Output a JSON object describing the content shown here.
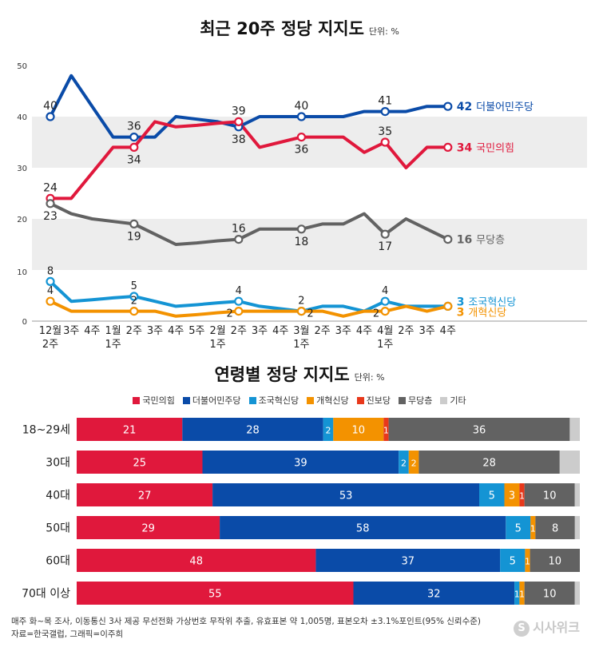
{
  "top_chart": {
    "title": "최근 20주 정당 지지도",
    "unit": "단위: %"
  },
  "bottom_chart": {
    "title": "연령별 정당 지지도",
    "unit": "단위: %"
  },
  "footer": {
    "note": "매주 화~목 조사, 이동통신 3사 제공 무선전화 가상번호 무작위 추출, 유효표본 약 1,005명, 표본오차 ±3.1%포인트(95% 신뢰수준)",
    "source": "자료=한국갤럽, 그래픽=이주희"
  },
  "logo": {
    "mark": "S",
    "text": "시사위크"
  },
  "chart_data": [
    {
      "type": "line",
      "title": "최근 20주 정당 지지도",
      "unit": "단위: %",
      "x_labels": [
        [
          "12월",
          "2주"
        ],
        [
          "3주"
        ],
        [
          "4주"
        ],
        [
          "1월",
          "1주"
        ],
        [
          "2주"
        ],
        [
          "3주"
        ],
        [
          "4주"
        ],
        [
          "5주"
        ],
        [
          "2월",
          "1주"
        ],
        [
          "2주"
        ],
        [
          "3주"
        ],
        [
          "4주"
        ],
        [
          "3월",
          "1주"
        ],
        [
          "2주"
        ],
        [
          "3주"
        ],
        [
          "4주"
        ],
        [
          "4월",
          "1주"
        ],
        [
          "2주"
        ],
        [
          "3주"
        ],
        [
          "4주"
        ]
      ],
      "upper_panel": {
        "ylim": [
          10,
          50
        ],
        "yticks": [
          20,
          30,
          40,
          50
        ]
      },
      "lower_panel": {
        "ylim": [
          0,
          10
        ],
        "yticks": [
          0,
          10
        ]
      },
      "series": [
        {
          "name": "더불어민주당",
          "color": "#0a4ba8",
          "panel": "upper",
          "values": [
            40,
            48,
            42,
            36,
            36,
            36,
            40,
            39.5,
            39,
            38,
            40,
            40,
            40,
            40,
            40,
            41,
            41,
            41,
            42,
            42
          ],
          "labels": [
            {
              "i": 0,
              "text": "40",
              "pos": "above"
            },
            {
              "i": 4,
              "text": "36",
              "pos": "above"
            },
            {
              "i": 9,
              "text": "38",
              "pos": "below"
            },
            {
              "i": 12,
              "text": "40",
              "pos": "above"
            },
            {
              "i": 16,
              "text": "41",
              "pos": "above"
            }
          ],
          "end_value": "42"
        },
        {
          "name": "국민의힘",
          "color": "#e0183c",
          "panel": "upper",
          "values": [
            24,
            24,
            29,
            34,
            34,
            39,
            38,
            38.3,
            38.7,
            39,
            34,
            35,
            36,
            36,
            36,
            33,
            35,
            30,
            34,
            34
          ],
          "labels": [
            {
              "i": 0,
              "text": "24",
              "pos": "above"
            },
            {
              "i": 4,
              "text": "34",
              "pos": "below"
            },
            {
              "i": 9,
              "text": "39",
              "pos": "above"
            },
            {
              "i": 12,
              "text": "36",
              "pos": "below"
            },
            {
              "i": 16,
              "text": "35",
              "pos": "above"
            }
          ],
          "end_value": "34"
        },
        {
          "name": "무당층",
          "color": "#626262",
          "panel": "upper",
          "values": [
            23,
            21,
            20,
            19.5,
            19,
            17,
            15,
            15.3,
            15.7,
            16,
            18,
            18,
            18,
            19,
            19,
            21,
            17,
            20,
            18,
            16
          ],
          "labels": [
            {
              "i": 0,
              "text": "23",
              "pos": "below"
            },
            {
              "i": 4,
              "text": "19",
              "pos": "below"
            },
            {
              "i": 9,
              "text": "16",
              "pos": "above"
            },
            {
              "i": 12,
              "text": "18",
              "pos": "below"
            },
            {
              "i": 16,
              "text": "17",
              "pos": "below"
            }
          ],
          "end_value": "16"
        },
        {
          "name": "조국혁신당",
          "color": "#1494d4",
          "panel": "lower",
          "values": [
            8,
            4,
            4.3,
            4.7,
            5,
            4,
            3,
            3.3,
            3.7,
            4,
            3,
            2.5,
            2,
            3,
            3,
            2,
            4,
            3,
            3,
            3
          ],
          "labels": [
            {
              "i": 0,
              "text": "8",
              "pos": "above"
            },
            {
              "i": 4,
              "text": "5",
              "pos": "above"
            },
            {
              "i": 9,
              "text": "4",
              "pos": "above"
            },
            {
              "i": 12,
              "text": "2",
              "pos": "above"
            },
            {
              "i": 16,
              "text": "4",
              "pos": "above"
            }
          ],
          "end_value": "3"
        },
        {
          "name": "개혁신당",
          "color": "#f39200",
          "panel": "lower",
          "values": [
            4,
            2,
            2,
            2,
            2,
            2,
            1,
            1.3,
            1.7,
            2,
            2,
            2,
            2,
            2,
            1,
            2,
            2,
            3,
            2,
            3
          ],
          "labels": [
            {
              "i": 0,
              "text": "4",
              "pos": "above"
            },
            {
              "i": 4,
              "text": "2",
              "pos": "above"
            },
            {
              "i": 9,
              "text": "2",
              "pos": "left"
            },
            {
              "i": 12,
              "text": "2",
              "pos": "right"
            },
            {
              "i": 16,
              "text": "2",
              "pos": "left"
            }
          ],
          "end_value": "3"
        }
      ]
    },
    {
      "type": "bar",
      "orientation": "horizontal-stacked",
      "title": "연령별 정당 지지도",
      "unit": "단위: %",
      "categories": [
        "18~29세",
        "30대",
        "40대",
        "50대",
        "60대",
        "70대 이상"
      ],
      "series": [
        {
          "name": "국민의힘",
          "color": "#e0183c",
          "values": [
            21,
            25,
            27,
            29,
            48,
            55
          ],
          "labels": [
            "21",
            "25",
            "27",
            "29",
            "48",
            "55"
          ]
        },
        {
          "name": "더불어민주당",
          "color": "#0a4ba8",
          "values": [
            28,
            39,
            53,
            58,
            37,
            32
          ],
          "labels": [
            "28",
            "39",
            "53",
            "58",
            "37",
            "32"
          ]
        },
        {
          "name": "조국혁신당",
          "color": "#1494d4",
          "values": [
            2,
            2,
            5,
            5,
            5,
            1
          ],
          "labels": [
            "2",
            "2",
            "5",
            "5",
            "5",
            "1"
          ]
        },
        {
          "name": "개혁신당",
          "color": "#f39200",
          "values": [
            10,
            2,
            3,
            1,
            1,
            1
          ],
          "labels": [
            "10",
            "2",
            "3",
            "1",
            "1",
            "1"
          ]
        },
        {
          "name": "진보당",
          "color": "#e8381b",
          "values": [
            1,
            0,
            1,
            0,
            0,
            0
          ],
          "labels": [
            "1",
            "",
            "1",
            "",
            "",
            ""
          ]
        },
        {
          "name": "무당층",
          "color": "#626262",
          "values": [
            36,
            28,
            10,
            8,
            10,
            10
          ],
          "labels": [
            "36",
            "28",
            "10",
            "8",
            "10",
            "10"
          ]
        },
        {
          "name": "기타",
          "color": "#cccccc",
          "values": [
            2,
            4,
            1,
            1,
            0,
            1
          ],
          "labels": [
            "",
            "",
            "",
            "",
            "",
            ""
          ]
        }
      ]
    }
  ]
}
